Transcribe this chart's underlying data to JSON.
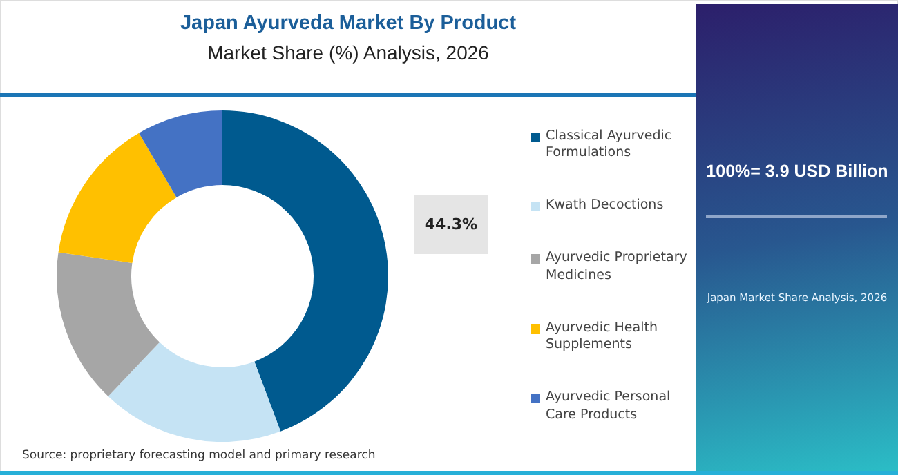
{
  "chart_data": {
    "type": "donut",
    "title": "Japan Ayurveda Market By Product",
    "subtitle": "Market Share (%) Analysis, 2026",
    "categories": [
      "Classical Ayurvedic Formulations",
      "Kwath Decoctions",
      "Ayurvedic Proprietary Medicines",
      "Ayurvedic Health Supplements",
      "Ayurvedic Personal Care Products"
    ],
    "values": [
      44.3,
      17.8,
      15.2,
      14.3,
      8.4
    ],
    "colors": [
      "#005a8f",
      "#c5e3f4",
      "#a6a6a6",
      "#ffc000",
      "#4472c4"
    ],
    "value_labels": [
      "44.3%",
      null,
      null,
      null,
      null
    ],
    "legend": "right",
    "annotations": [
      "100%= 3.9 USD Billion",
      "Japan Market Share Analysis, 2026",
      "Source: proprietary forecasting model and primary research"
    ]
  }
}
